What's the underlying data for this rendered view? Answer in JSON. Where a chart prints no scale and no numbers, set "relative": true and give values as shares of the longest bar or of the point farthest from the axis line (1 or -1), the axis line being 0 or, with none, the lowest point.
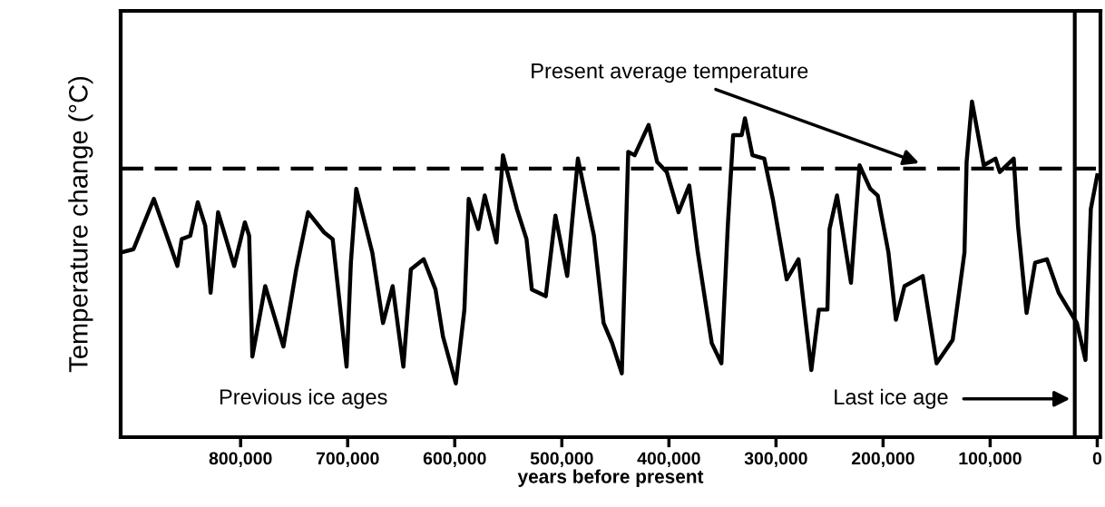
{
  "chart_data": {
    "type": "line",
    "relative": true,
    "xlabel": "years before present",
    "ylabel": "Temperature change (°C)",
    "xlim": [
      912000,
      -3000
    ],
    "xticks": [
      {
        "value": 800000,
        "label": "800,000"
      },
      {
        "value": 700000,
        "label": "700,000"
      },
      {
        "value": 600000,
        "label": "600,000"
      },
      {
        "value": 500000,
        "label": "500,000"
      },
      {
        "value": 400000,
        "label": "400,000"
      },
      {
        "value": 300000,
        "label": "300,000"
      },
      {
        "value": 200000,
        "label": "200,000"
      },
      {
        "value": 100000,
        "label": "100,000"
      },
      0
    ],
    "tick_labels": "x",
    "grid": false,
    "marker": "none",
    "line_style": "solid",
    "series": [
      {
        "color": "#000000",
        "x": [
          912000,
          900000,
          881000,
          859000,
          855000,
          847000,
          840000,
          833000,
          828000,
          821000,
          806000,
          796000,
          792000,
          789000,
          777000,
          760000,
          748000,
          737000,
          722000,
          714000,
          701000,
          697000,
          692000,
          677000,
          667000,
          658000,
          648000,
          641000,
          629000,
          618000,
          611000,
          599000,
          591000,
          587000,
          578000,
          572000,
          561000,
          555000,
          542000,
          533000,
          528000,
          515000,
          506000,
          495000,
          485000,
          470000,
          461000,
          453000,
          444000,
          438000,
          432000,
          419000,
          411000,
          402000,
          391000,
          381000,
          373000,
          360000,
          351000,
          345000,
          340000,
          332000,
          329000,
          322000,
          311000,
          303000,
          290000,
          279000,
          271000,
          267000,
          260000,
          252000,
          250000,
          243000,
          230000,
          222000,
          212000,
          205000,
          195000,
          188000,
          180000,
          163000,
          150000,
          135000,
          124000,
          122000,
          117000,
          106000,
          95000,
          91000,
          78000,
          74000,
          66000,
          58000,
          47000,
          36000,
          19000,
          11000,
          6000,
          0
        ],
        "values": [
          0.55,
          0.56,
          0.71,
          0.51,
          0.59,
          0.6,
          0.7,
          0.63,
          0.43,
          0.67,
          0.51,
          0.64,
          0.6,
          0.24,
          0.45,
          0.27,
          0.5,
          0.67,
          0.61,
          0.59,
          0.21,
          0.52,
          0.74,
          0.55,
          0.34,
          0.45,
          0.21,
          0.5,
          0.53,
          0.44,
          0.3,
          0.16,
          0.38,
          0.71,
          0.62,
          0.72,
          0.58,
          0.84,
          0.68,
          0.59,
          0.44,
          0.42,
          0.66,
          0.48,
          0.83,
          0.6,
          0.34,
          0.28,
          0.19,
          0.85,
          0.84,
          0.93,
          0.82,
          0.79,
          0.67,
          0.75,
          0.55,
          0.28,
          0.22,
          0.63,
          0.9,
          0.9,
          0.95,
          0.84,
          0.83,
          0.71,
          0.47,
          0.53,
          0.31,
          0.2,
          0.38,
          0.38,
          0.62,
          0.72,
          0.46,
          0.81,
          0.74,
          0.72,
          0.55,
          0.35,
          0.45,
          0.48,
          0.22,
          0.29,
          0.55,
          0.82,
          1.0,
          0.81,
          0.83,
          0.79,
          0.83,
          0.63,
          0.37,
          0.52,
          0.53,
          0.43,
          0.34,
          0.23,
          0.68,
          0.78
        ]
      }
    ],
    "ref_lines": [
      {
        "axis": "y",
        "value": 0.8,
        "color": "#000000",
        "line_style": "dashed"
      },
      {
        "axis": "x",
        "value": 21000,
        "color": "#000000",
        "line_style": "solid"
      }
    ],
    "annotations": [
      "Present average temperature",
      "Previous ice ages",
      "Last ice age"
    ]
  }
}
